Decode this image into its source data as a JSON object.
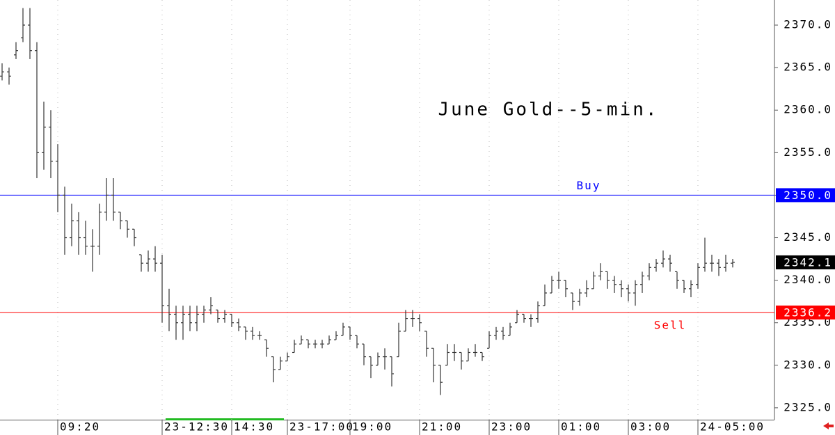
{
  "chart_data": {
    "type": "ohlc",
    "title": "June Gold--5-min.",
    "color": "#333333",
    "categories": [
      null,
      null,
      null,
      null,
      null,
      null,
      null,
      null,
      "09:20",
      null,
      null,
      null,
      null,
      null,
      null,
      null,
      null,
      null,
      null,
      null,
      null,
      null,
      null,
      "23-12:30",
      null,
      null,
      null,
      null,
      null,
      null,
      null,
      null,
      null,
      "14:30",
      null,
      null,
      null,
      null,
      null,
      null,
      null,
      "23-17:00",
      null,
      null,
      null,
      null,
      null,
      null,
      null,
      null,
      "19:00",
      null,
      null,
      null,
      null,
      null,
      null,
      null,
      null,
      null,
      "21:00",
      null,
      null,
      null,
      null,
      null,
      null,
      null,
      null,
      null,
      "23:00",
      null,
      null,
      null,
      null,
      null,
      null,
      null,
      null,
      null,
      "01:00",
      null,
      null,
      null,
      null,
      null,
      null,
      null,
      null,
      null,
      "03:00",
      null,
      null,
      null,
      null,
      null,
      null,
      null,
      null,
      null,
      "24-05:00",
      null,
      null,
      null,
      null,
      null
    ],
    "open": [
      2364,
      2364.5,
      2366.5,
      2368.5,
      2370,
      2367,
      2355,
      2358,
      2354,
      2350,
      2345,
      2347,
      2345,
      2344,
      2344,
      2348,
      2350,
      2348,
      2347,
      2346,
      2343,
      2342,
      2342.5,
      2342,
      2337,
      2336,
      2335,
      2336,
      2335,
      2336,
      2336.5,
      2336.5,
      2335.5,
      2336,
      2335,
      2334.5,
      2334,
      2333.5,
      2333,
      2331,
      2329.5,
      2330.5,
      2331.5,
      2332.5,
      2333,
      2332.5,
      2332.5,
      2332.5,
      2333,
      2333.5,
      2334.5,
      2333.5,
      2332.5,
      2331,
      2330,
      2331,
      2331,
      2331,
      2334,
      2335.5,
      2335.5,
      2334,
      2332,
      2330,
      2330,
      2331.5,
      2331.5,
      2330.5,
      2331.5,
      2331.5,
      2332,
      2333.5,
      2334,
      2333.5,
      2335,
      2336,
      2335.5,
      2335.5,
      2337,
      2338.5,
      2340,
      2340,
      2338.5,
      2337.5,
      2338.5,
      2339,
      2340.5,
      2341,
      2340,
      2339.5,
      2339,
      2338.5,
      2339.5,
      2340.5,
      2341.5,
      2342,
      2342.5,
      2341,
      2340,
      2339,
      2339.5,
      2341.5,
      2342,
      2342,
      2341.5,
      2342
    ],
    "high": [
      2365.5,
      2365,
      2368,
      2372,
      2372,
      2368,
      2361,
      2360,
      2356,
      2351,
      2349,
      2348,
      2347,
      2346,
      2349,
      2352,
      2352,
      2348,
      2347,
      2346,
      2343,
      2343.5,
      2344,
      2343,
      2339,
      2337,
      2337,
      2337,
      2337,
      2337,
      2338,
      2336.5,
      2336.5,
      2336,
      2335.5,
      2334.5,
      2334.5,
      2334,
      2333,
      2331,
      2331,
      2331.5,
      2333,
      2333.5,
      2333,
      2333,
      2333,
      2333.5,
      2334,
      2335,
      2334.5,
      2333.5,
      2332.5,
      2331,
      2331.5,
      2332,
      2331,
      2335,
      2336.5,
      2336.5,
      2336,
      2334,
      2332,
      2330,
      2332.5,
      2332.5,
      2331.5,
      2332,
      2332.5,
      2331.5,
      2334,
      2334.5,
      2334.5,
      2335,
      2336.5,
      2336,
      2336,
      2337.5,
      2339.5,
      2340.5,
      2341,
      2340,
      2338.5,
      2339,
      2340,
      2341,
      2342,
      2341,
      2340.5,
      2340,
      2339.5,
      2340,
      2341,
      2342,
      2342.5,
      2343.5,
      2343,
      2341,
      2340,
      2340,
      2342,
      2345,
      2343,
      2342.5,
      2343,
      2342.5
    ],
    "low": [
      2363.5,
      2363,
      2366,
      2368,
      2366,
      2352,
      2353,
      2352,
      2348,
      2343,
      2344,
      2343,
      2343,
      2341,
      2343,
      2347,
      2347,
      2346,
      2345,
      2344,
      2341,
      2341,
      2341,
      2335,
      2334,
      2333,
      2333,
      2334,
      2334,
      2335,
      2336,
      2335,
      2335,
      2334.5,
      2334,
      2333,
      2333,
      2333,
      2331,
      2328,
      2329.5,
      2330.5,
      2331.5,
      2332.5,
      2332,
      2332,
      2332,
      2332.5,
      2333,
      2333.5,
      2333,
      2332,
      2330,
      2328.5,
      2330,
      2329.5,
      2327.5,
      2331,
      2334,
      2334.5,
      2334,
      2331,
      2328,
      2326.5,
      2330,
      2330.5,
      2329.5,
      2330.5,
      2331,
      2330.5,
      2332,
      2333,
      2333,
      2333.5,
      2335,
      2335,
      2334.5,
      2335,
      2337,
      2338.5,
      2339,
      2338,
      2336.5,
      2337,
      2338,
      2339,
      2340,
      2339,
      2338.5,
      2338,
      2337.5,
      2337,
      2338.5,
      2340,
      2341,
      2341.5,
      2341,
      2339,
      2338.5,
      2338,
      2339,
      2341,
      2341,
      2340.5,
      2341,
      2341.5
    ],
    "close": [
      2364.5,
      2364,
      2367,
      2370,
      2367,
      2355,
      2358,
      2354,
      2350,
      2345,
      2347,
      2345,
      2344,
      2344,
      2348,
      2350,
      2348,
      2347,
      2346,
      2345,
      2342,
      2342.5,
      2342,
      2337,
      2336,
      2335,
      2336,
      2335,
      2336,
      2336.5,
      2337,
      2335.5,
      2336,
      2335,
      2334.5,
      2334,
      2333.5,
      2333.5,
      2332,
      2329.5,
      2330.5,
      2331,
      2332.5,
      2333,
      2332.5,
      2332.5,
      2332.5,
      2333,
      2333.5,
      2334.5,
      2333.5,
      2332.5,
      2331,
      2330,
      2331,
      2331,
      2329,
      2334,
      2335.5,
      2335.5,
      2335,
      2332,
      2330,
      2328,
      2331.5,
      2331.5,
      2330.5,
      2331.5,
      2331.5,
      2331,
      2333.5,
      2334,
      2333.5,
      2334.5,
      2336,
      2335.5,
      2335.5,
      2337,
      2338.5,
      2340,
      2340,
      2339,
      2337.5,
      2338.5,
      2339,
      2340.5,
      2341,
      2340,
      2339.5,
      2339,
      2338.5,
      2339.5,
      2340.5,
      2341.5,
      2342,
      2342.5,
      2342,
      2340,
      2339,
      2339.5,
      2341.5,
      2342,
      2342,
      2341.5,
      2342,
      2342.1
    ],
    "ylim": [
      2323.6,
      2372.95
    ],
    "yticks": [
      {
        "value": 2325,
        "label": "2325.0"
      },
      {
        "value": 2330,
        "label": "2330.0"
      },
      {
        "value": 2335,
        "label": "2335.0"
      },
      {
        "value": 2340,
        "label": "2340.0"
      },
      {
        "value": 2345,
        "label": "2345.0"
      },
      {
        "value": 2350,
        "label": "2350.0"
      },
      {
        "value": 2355,
        "label": "2355.0"
      },
      {
        "value": 2360,
        "label": "2360.0"
      },
      {
        "value": 2365,
        "label": "2365.0"
      },
      {
        "value": 2370,
        "label": "2370.0"
      }
    ],
    "levels": [
      {
        "name": "Buy",
        "value": 2350,
        "value_label": "2350.0",
        "color": "#0000ff"
      },
      {
        "name": "Sell",
        "value": 2336.2,
        "value_label": "2336.2",
        "color": "#ff0000"
      }
    ],
    "last_price": {
      "value": 2342.1,
      "label": "2342.1",
      "color": "#000000"
    }
  }
}
